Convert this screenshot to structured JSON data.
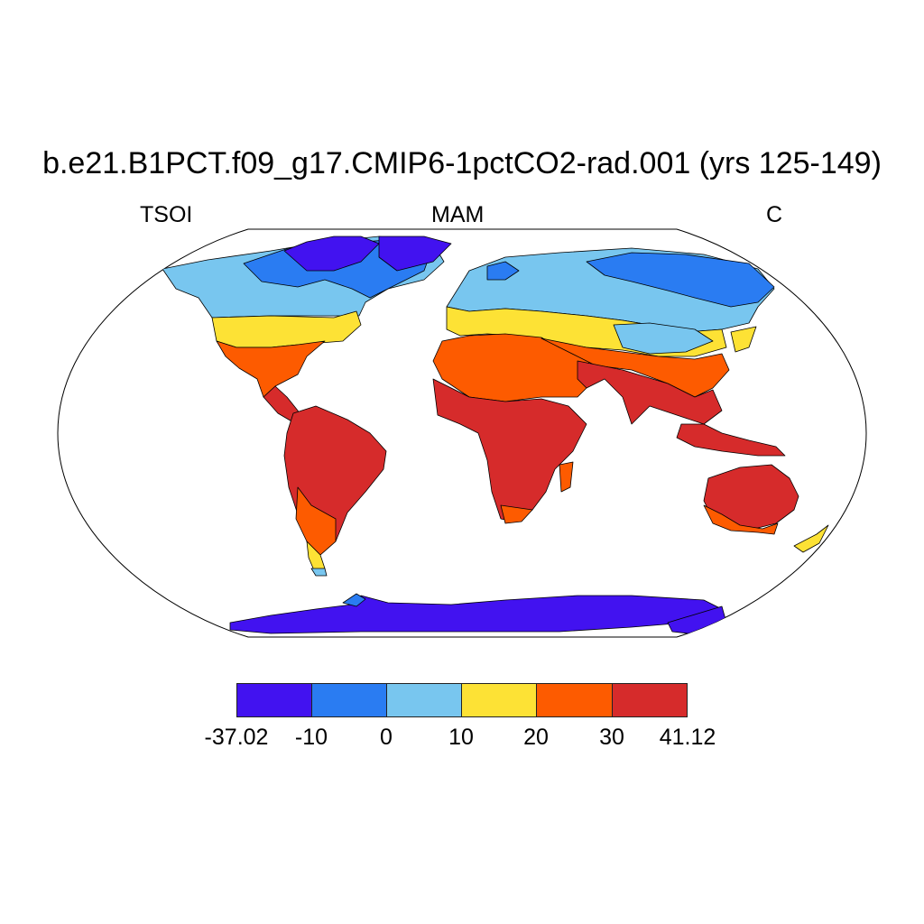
{
  "title": "b.e21.B1PCT.f09_g17.CMIP6-1pctCO2-rad.001 (yrs 125-149)",
  "labels": {
    "left": "TSOI",
    "center": "MAM",
    "right": "C"
  },
  "colorbar": {
    "colors": [
      "#4212f0",
      "#2a7cf2",
      "#78c6ef",
      "#fde235",
      "#fd5b00",
      "#d62b2b"
    ],
    "labels": [
      "-37.02",
      "-10",
      "0",
      "10",
      "20",
      "30",
      "41.12"
    ]
  },
  "map": {
    "projection": "robinson",
    "ocean_color": "#ffffff",
    "outline_color": "#000000"
  }
}
